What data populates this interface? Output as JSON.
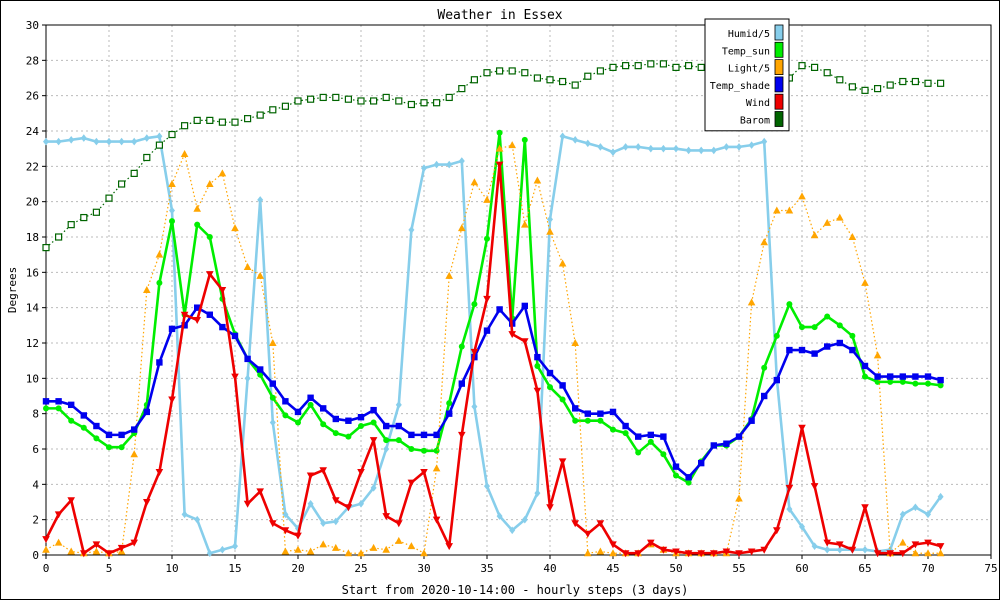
{
  "chart_data": {
    "type": "line",
    "title": "Weather in Essex",
    "xlabel": "Start from 2020-10-14:00 - hourly steps (3 days)",
    "ylabel": "Degrees",
    "xlim": [
      0,
      75
    ],
    "ylim": [
      0,
      30
    ],
    "x_ticks": [
      0,
      5,
      10,
      15,
      20,
      25,
      30,
      35,
      40,
      45,
      50,
      55,
      60,
      65,
      70,
      75
    ],
    "y_ticks": [
      0,
      2,
      4,
      6,
      8,
      10,
      12,
      14,
      16,
      18,
      20,
      22,
      24,
      26,
      28,
      30
    ],
    "grid": true,
    "legend_position": "top-right",
    "series": [
      {
        "name": "Humid/5",
        "color": "#87ceeb",
        "marker": "diamond",
        "line": "solid",
        "values": [
          23.4,
          23.4,
          23.5,
          23.6,
          23.4,
          23.4,
          23.4,
          23.4,
          23.6,
          23.7,
          19.5,
          2.3,
          2.0,
          0.1,
          0.3,
          0.5,
          10.0,
          20.1,
          7.5,
          2.3,
          1.5,
          2.9,
          1.8,
          1.9,
          2.7,
          2.9,
          3.8,
          6.0,
          8.5,
          18.4,
          21.9,
          22.1,
          22.1,
          22.3,
          8.4,
          3.9,
          2.2,
          1.4,
          2.0,
          3.5,
          19.0,
          23.7,
          23.5,
          23.3,
          23.1,
          22.8,
          23.1,
          23.1,
          23.0,
          23.0,
          23.0,
          22.9,
          22.9,
          22.9,
          23.1,
          23.1,
          23.2,
          23.4,
          10.0,
          2.6,
          1.6,
          0.5,
          0.3,
          0.3,
          0.3,
          0.3,
          0.2,
          0.3,
          2.3,
          2.7,
          2.3,
          3.3
        ]
      },
      {
        "name": "Temp_sun",
        "color": "#00ee00",
        "marker": "circle",
        "line": "solid",
        "values": [
          8.3,
          8.3,
          7.6,
          7.2,
          6.6,
          6.1,
          6.1,
          6.9,
          8.5,
          15.4,
          18.9,
          13.6,
          18.7,
          18.0,
          14.5,
          12.5,
          11.1,
          10.2,
          8.9,
          7.9,
          7.5,
          8.5,
          7.4,
          6.9,
          6.7,
          7.3,
          7.5,
          6.5,
          6.5,
          6.0,
          5.9,
          5.9,
          8.6,
          11.8,
          14.2,
          17.9,
          23.9,
          13.4,
          23.5,
          10.7,
          9.5,
          8.8,
          7.6,
          7.6,
          7.6,
          7.1,
          6.9,
          5.8,
          6.4,
          5.7,
          4.5,
          4.1,
          5.3,
          6.2,
          6.2,
          6.7,
          7.7,
          10.6,
          12.4,
          14.2,
          12.9,
          12.9,
          13.5,
          13.0,
          12.4,
          10.1,
          9.8,
          9.8,
          9.8,
          9.7,
          9.7,
          9.6
        ]
      },
      {
        "name": "Light/5",
        "color": "#ffa500",
        "marker": "triangle",
        "line": "dotted",
        "values": [
          0.3,
          0.7,
          0.2,
          0.1,
          0.2,
          0.1,
          0.2,
          5.7,
          15.0,
          17.0,
          21.0,
          22.7,
          19.6,
          21.0,
          21.6,
          18.5,
          16.3,
          15.8,
          12.0,
          0.2,
          0.3,
          0.2,
          0.6,
          0.4,
          0.1,
          0.1,
          0.4,
          0.3,
          0.8,
          0.5,
          0.1,
          4.9,
          15.8,
          18.5,
          21.1,
          20.1,
          23.0,
          23.2,
          18.7,
          21.2,
          18.3,
          16.5,
          12.0,
          0.1,
          0.2,
          0.1,
          0.1,
          0.1,
          0.6,
          0.3,
          0.1,
          0.1,
          0.1,
          0.1,
          0.1,
          3.2,
          14.3,
          17.7,
          19.5,
          19.5,
          20.3,
          18.1,
          18.8,
          19.1,
          18.0,
          15.4,
          11.3,
          0.1,
          0.7,
          0.1,
          0.1,
          0.1
        ]
      },
      {
        "name": "Temp_shade",
        "color": "#0000ee",
        "marker": "square",
        "line": "solid",
        "values": [
          8.7,
          8.7,
          8.5,
          7.9,
          7.3,
          6.8,
          6.8,
          7.1,
          8.1,
          10.9,
          12.8,
          13.0,
          14.0,
          13.6,
          12.9,
          12.4,
          11.1,
          10.5,
          9.7,
          8.7,
          8.1,
          8.9,
          8.3,
          7.7,
          7.6,
          7.8,
          8.2,
          7.3,
          7.3,
          6.8,
          6.8,
          6.8,
          8.0,
          9.7,
          11.2,
          12.7,
          13.9,
          13.1,
          14.1,
          11.2,
          10.3,
          9.6,
          8.3,
          8.0,
          8.0,
          8.1,
          7.3,
          6.7,
          6.8,
          6.7,
          5.0,
          4.4,
          5.2,
          6.2,
          6.3,
          6.7,
          7.6,
          9.0,
          9.9,
          11.6,
          11.6,
          11.4,
          11.8,
          12.0,
          11.6,
          10.7,
          10.1,
          10.1,
          10.1,
          10.1,
          10.1,
          9.9
        ]
      },
      {
        "name": "Wind",
        "color": "#ee0000",
        "marker": "inv-triangle",
        "line": "solid",
        "values": [
          0.9,
          2.3,
          3.1,
          0.1,
          0.6,
          0.1,
          0.4,
          0.7,
          3.0,
          4.7,
          8.8,
          13.6,
          13.3,
          15.9,
          15.0,
          10.1,
          2.9,
          3.6,
          1.8,
          1.4,
          1.1,
          4.5,
          4.8,
          3.1,
          2.7,
          4.7,
          6.5,
          2.2,
          1.8,
          4.1,
          4.7,
          2.0,
          0.5,
          6.8,
          11.5,
          14.5,
          22.1,
          12.5,
          12.1,
          9.3,
          2.7,
          5.3,
          1.8,
          1.2,
          1.8,
          0.6,
          0.1,
          0.1,
          0.7,
          0.3,
          0.2,
          0.1,
          0.1,
          0.1,
          0.2,
          0.1,
          0.2,
          0.3,
          1.4,
          3.8,
          7.2,
          3.9,
          0.7,
          0.6,
          0.3,
          2.7,
          0.1,
          0.1,
          0.1,
          0.6,
          0.7,
          0.5
        ]
      },
      {
        "name": "Barom",
        "color": "#006400",
        "marker": "square-open",
        "line": "dotted",
        "values": [
          17.4,
          18.0,
          18.7,
          19.1,
          19.4,
          20.2,
          21.0,
          21.6,
          22.5,
          23.2,
          23.8,
          24.3,
          24.6,
          24.6,
          24.5,
          24.5,
          24.7,
          24.9,
          25.2,
          25.4,
          25.7,
          25.8,
          25.9,
          25.9,
          25.8,
          25.7,
          25.7,
          25.9,
          25.7,
          25.5,
          25.6,
          25.6,
          25.9,
          26.4,
          26.9,
          27.3,
          27.4,
          27.4,
          27.3,
          27.0,
          26.9,
          26.8,
          26.6,
          27.1,
          27.4,
          27.6,
          27.7,
          27.7,
          27.8,
          27.8,
          27.6,
          27.7,
          27.6,
          27.5,
          27.2,
          27.0,
          27.0,
          27.0,
          27.0,
          27.0,
          27.7,
          27.6,
          27.3,
          26.9,
          26.5,
          26.3,
          26.4,
          26.6,
          26.8,
          26.8,
          26.7,
          26.7
        ]
      }
    ]
  }
}
